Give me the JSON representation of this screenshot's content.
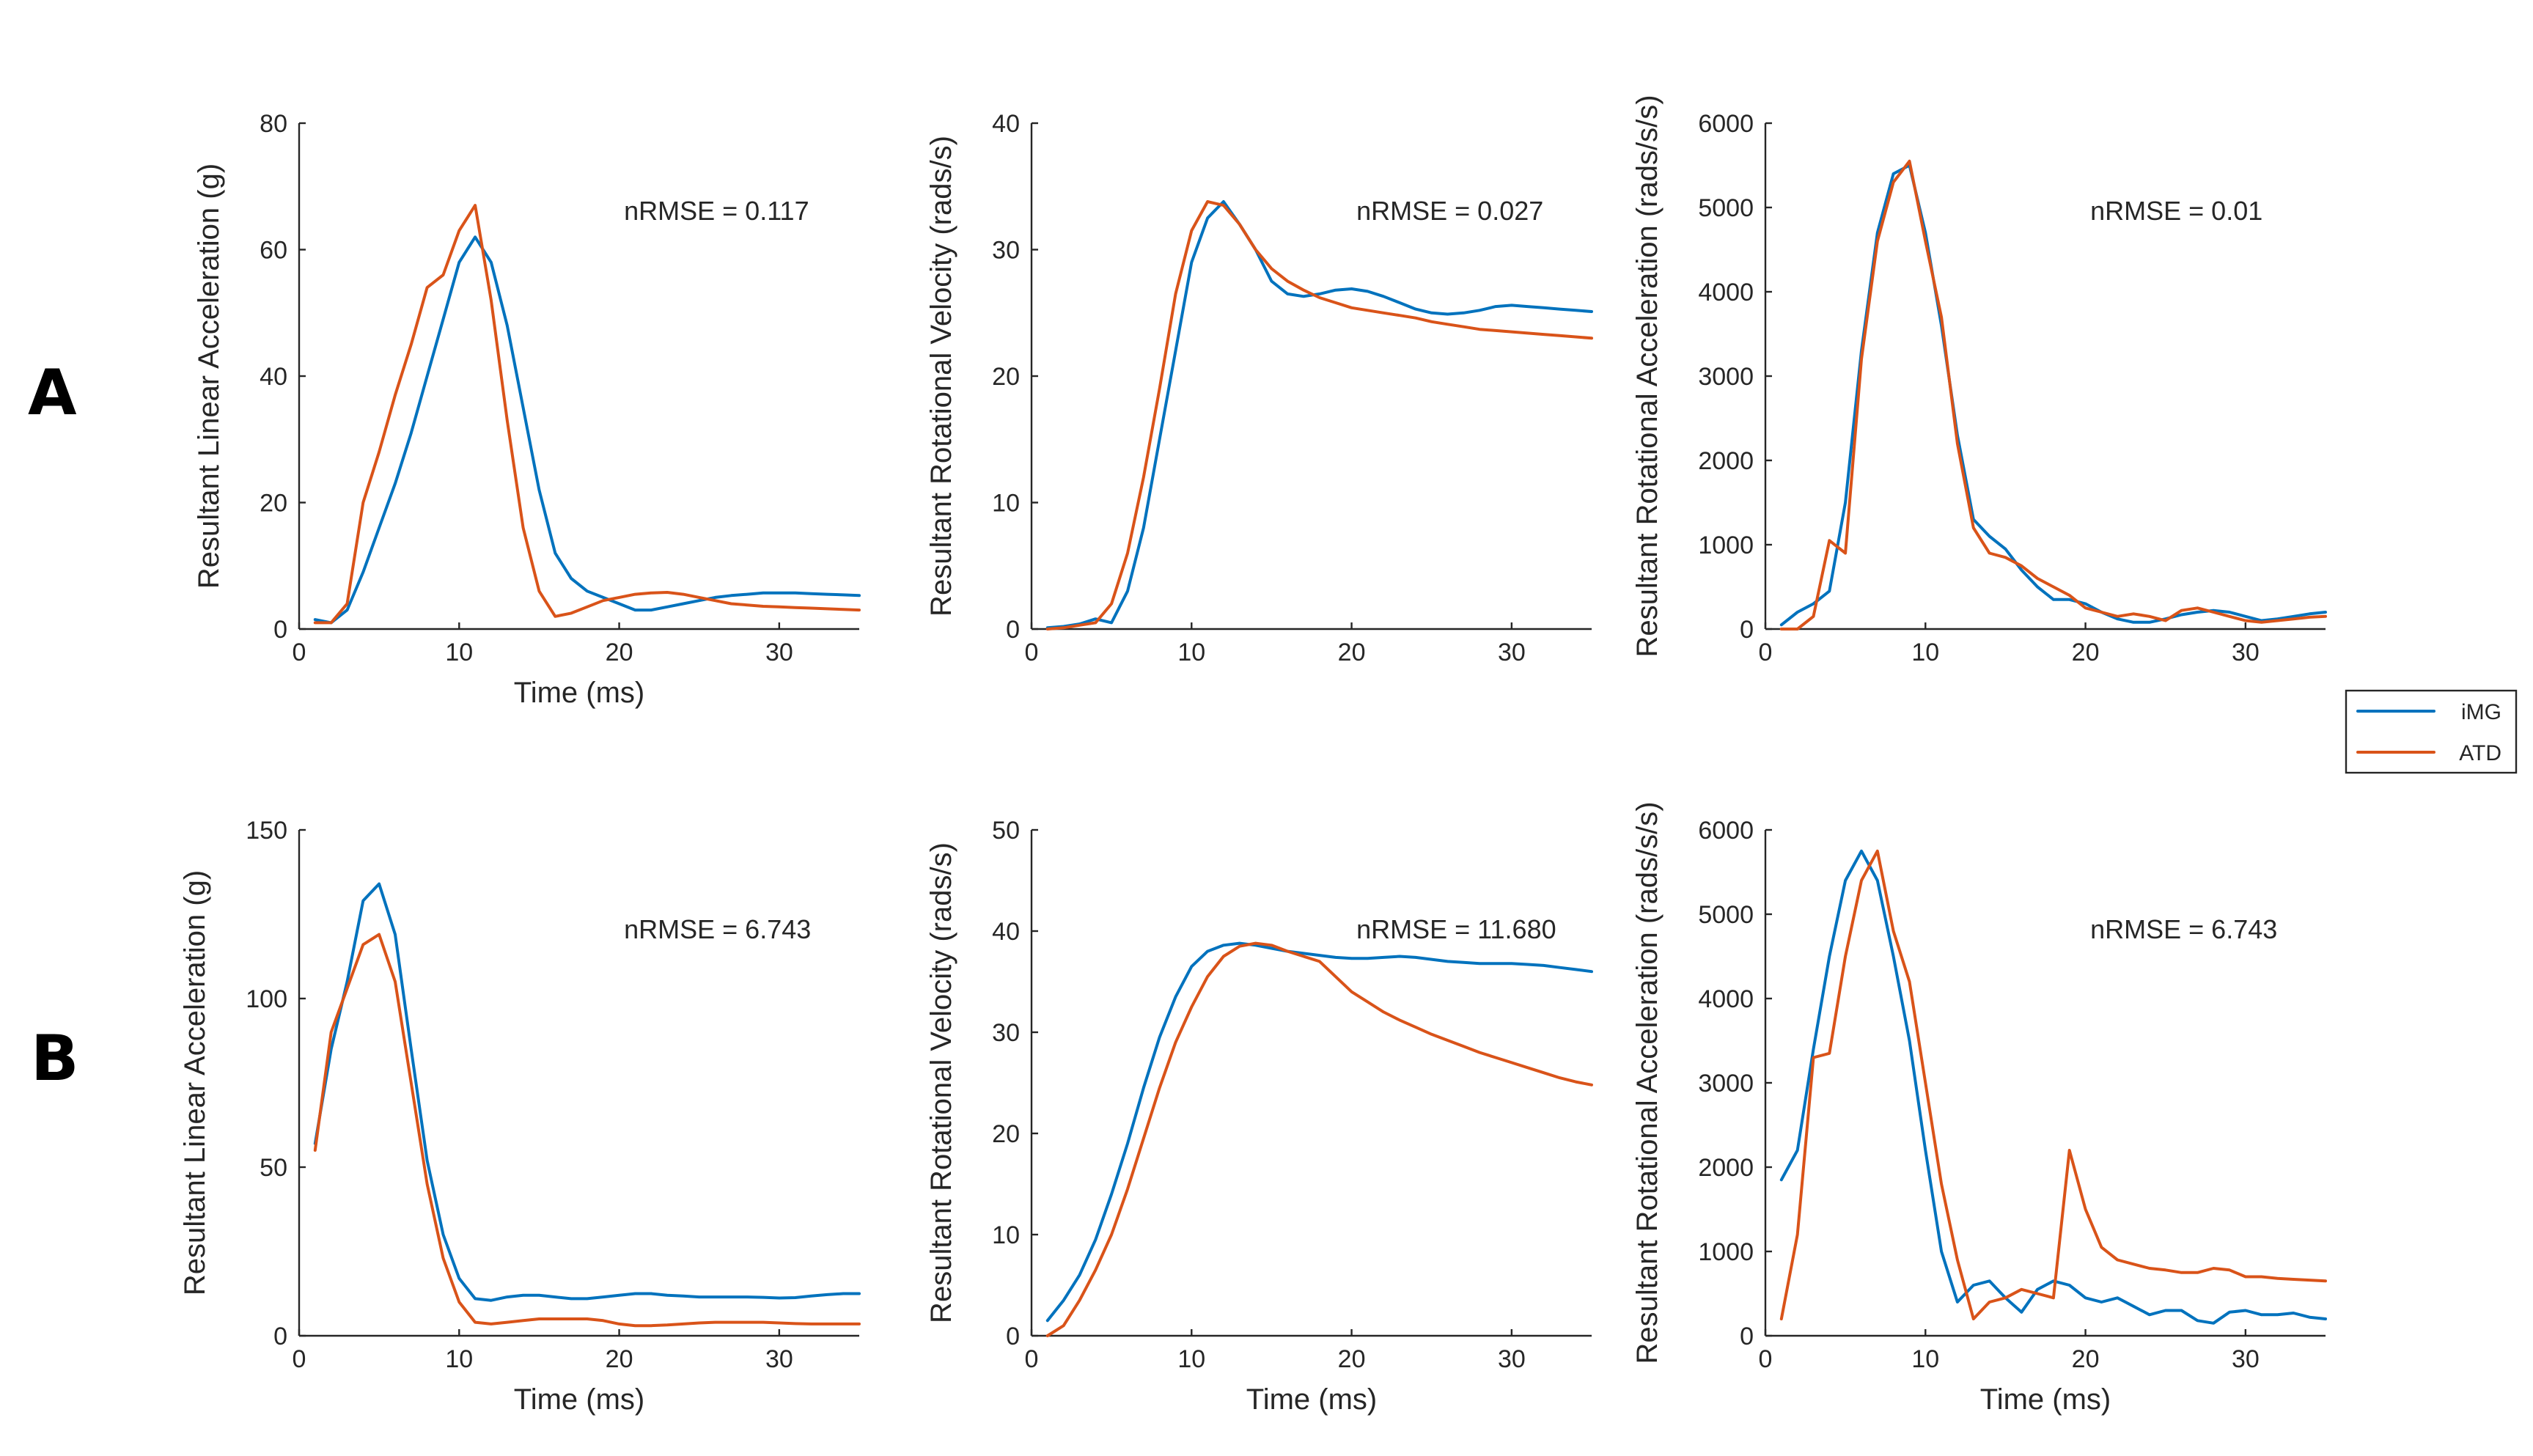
{
  "row_labels": [
    "A",
    "B"
  ],
  "legend": {
    "placement": "right-middle",
    "entries": [
      "iMG",
      "ATD"
    ]
  },
  "colors": {
    "iMG": "#0072BD",
    "ATD": "#D95319"
  },
  "chart_data": [
    {
      "type": "line",
      "row": "A",
      "col": 0,
      "xlabel": "Time (ms)",
      "ylabel": "Resultant Linear Acceleration (g)",
      "xlim": [
        0,
        35
      ],
      "ylim": [
        0,
        80
      ],
      "xticks": [
        0,
        10,
        20,
        30
      ],
      "yticks": [
        0,
        20,
        40,
        60,
        80
      ],
      "annotation": "nRMSE = 0.117",
      "series": [
        {
          "name": "iMG",
          "x": [
            1,
            2,
            3,
            4,
            5,
            6,
            7,
            8,
            9,
            10,
            11,
            12,
            13,
            14,
            15,
            16,
            17,
            18,
            19,
            20,
            21,
            22,
            23,
            24,
            25,
            26,
            27,
            28,
            29,
            30,
            31,
            32,
            33,
            34,
            35
          ],
          "y": [
            1.5,
            1,
            3,
            9,
            16,
            23,
            31,
            40,
            49,
            58,
            62,
            58,
            48,
            35,
            22,
            12,
            8,
            6,
            5,
            4,
            3,
            3,
            3.5,
            4,
            4.5,
            5,
            5.3,
            5.5,
            5.7,
            5.7,
            5.7,
            5.6,
            5.5,
            5.4,
            5.3
          ]
        },
        {
          "name": "ATD",
          "x": [
            1,
            2,
            3,
            4,
            5,
            6,
            7,
            8,
            9,
            10,
            11,
            12,
            13,
            14,
            15,
            16,
            17,
            18,
            19,
            20,
            21,
            22,
            23,
            24,
            25,
            26,
            27,
            28,
            29,
            30,
            31,
            32,
            33,
            34,
            35
          ],
          "y": [
            1,
            1,
            4,
            20,
            28,
            37,
            45,
            54,
            56,
            63,
            67,
            52,
            33,
            16,
            6,
            2,
            2.5,
            3.5,
            4.5,
            5,
            5.5,
            5.7,
            5.8,
            5.5,
            5,
            4.5,
            4,
            3.8,
            3.6,
            3.5,
            3.4,
            3.3,
            3.2,
            3.1,
            3
          ]
        }
      ]
    },
    {
      "type": "line",
      "row": "A",
      "col": 1,
      "xlabel": "",
      "ylabel": "Resultant Rotational Velocity (rads/s)",
      "xlim": [
        0,
        35
      ],
      "ylim": [
        0,
        40
      ],
      "xticks": [
        0,
        10,
        20,
        30
      ],
      "yticks": [
        0,
        10,
        20,
        30,
        40
      ],
      "annotation": "nRMSE = 0.027",
      "series": [
        {
          "name": "iMG",
          "x": [
            1,
            2,
            3,
            4,
            5,
            6,
            7,
            8,
            9,
            10,
            11,
            12,
            13,
            14,
            15,
            16,
            17,
            18,
            19,
            20,
            21,
            22,
            23,
            24,
            25,
            26,
            27,
            28,
            29,
            30,
            31,
            32,
            33,
            34,
            35
          ],
          "y": [
            0.1,
            0.2,
            0.4,
            0.8,
            0.5,
            3,
            8,
            15,
            22,
            29,
            32.5,
            33.8,
            32,
            30,
            27.5,
            26.5,
            26.3,
            26.5,
            26.8,
            26.9,
            26.7,
            26.3,
            25.8,
            25.3,
            25,
            24.9,
            25,
            25.2,
            25.5,
            25.6,
            25.5,
            25.4,
            25.3,
            25.2,
            25.1
          ]
        },
        {
          "name": "ATD",
          "x": [
            1,
            2,
            3,
            4,
            5,
            6,
            7,
            8,
            9,
            10,
            11,
            12,
            13,
            14,
            15,
            16,
            17,
            18,
            19,
            20,
            21,
            22,
            23,
            24,
            25,
            26,
            27,
            28,
            29,
            30,
            31,
            32,
            33,
            34,
            35
          ],
          "y": [
            0,
            0.1,
            0.3,
            0.5,
            2,
            6,
            12,
            19,
            26.5,
            31.5,
            33.8,
            33.5,
            32,
            30,
            28.5,
            27.5,
            26.8,
            26.2,
            25.8,
            25.4,
            25.2,
            25,
            24.8,
            24.6,
            24.3,
            24.1,
            23.9,
            23.7,
            23.6,
            23.5,
            23.4,
            23.3,
            23.2,
            23.1,
            23
          ]
        }
      ]
    },
    {
      "type": "line",
      "row": "A",
      "col": 2,
      "xlabel": "",
      "ylabel": "Resultant Rotational Acceleration (rads/s/s)",
      "xlim": [
        0,
        35
      ],
      "ylim": [
        0,
        6000
      ],
      "xticks": [
        0,
        10,
        20,
        30
      ],
      "yticks": [
        0,
        1000,
        2000,
        3000,
        4000,
        5000,
        6000
      ],
      "annotation": "nRMSE = 0.01",
      "series": [
        {
          "name": "iMG",
          "x": [
            1,
            2,
            3,
            4,
            5,
            6,
            7,
            8,
            9,
            10,
            11,
            12,
            13,
            14,
            15,
            16,
            17,
            18,
            19,
            20,
            21,
            22,
            23,
            24,
            25,
            26,
            27,
            28,
            29,
            30,
            31,
            32,
            33,
            34,
            35
          ],
          "y": [
            50,
            200,
            300,
            450,
            1500,
            3300,
            4700,
            5400,
            5500,
            4700,
            3600,
            2300,
            1300,
            1100,
            950,
            700,
            500,
            350,
            350,
            300,
            200,
            120,
            80,
            80,
            120,
            170,
            200,
            220,
            200,
            150,
            100,
            120,
            150,
            180,
            200
          ]
        },
        {
          "name": "ATD",
          "x": [
            1,
            2,
            3,
            4,
            5,
            6,
            7,
            8,
            9,
            10,
            11,
            12,
            13,
            14,
            15,
            16,
            17,
            18,
            19,
            20,
            21,
            22,
            23,
            24,
            25,
            26,
            27,
            28,
            29,
            30,
            31,
            32,
            33,
            34,
            35
          ],
          "y": [
            0,
            0,
            150,
            1050,
            900,
            3200,
            4600,
            5300,
            5550,
            4600,
            3700,
            2200,
            1200,
            900,
            850,
            750,
            600,
            500,
            400,
            250,
            200,
            150,
            180,
            150,
            100,
            220,
            250,
            200,
            150,
            100,
            80,
            100,
            120,
            140,
            150
          ]
        }
      ]
    },
    {
      "type": "line",
      "row": "B",
      "col": 0,
      "xlabel": "Time (ms)",
      "ylabel": "Resultant Linear Acceleration (g)",
      "xlim": [
        0,
        35
      ],
      "ylim": [
        0,
        150
      ],
      "xticks": [
        0,
        10,
        20,
        30
      ],
      "yticks": [
        0,
        50,
        100,
        150
      ],
      "annotation": "nRMSE = 6.743",
      "series": [
        {
          "name": "iMG",
          "x": [
            1,
            2,
            3,
            4,
            5,
            6,
            7,
            8,
            9,
            10,
            11,
            12,
            13,
            14,
            15,
            16,
            17,
            18,
            19,
            20,
            21,
            22,
            23,
            24,
            25,
            26,
            27,
            28,
            29,
            30,
            31,
            32,
            33,
            34,
            35
          ],
          "y": [
            57,
            85,
            105,
            129,
            134,
            119,
            85,
            52,
            30,
            17,
            11,
            10.5,
            11.5,
            12,
            12,
            11.5,
            11,
            11,
            11.5,
            12,
            12.5,
            12.5,
            12,
            11.8,
            11.5,
            11.5,
            11.5,
            11.5,
            11.4,
            11.2,
            11.3,
            11.8,
            12.2,
            12.5,
            12.5
          ]
        },
        {
          "name": "ATD",
          "x": [
            1,
            2,
            3,
            4,
            5,
            6,
            7,
            8,
            9,
            10,
            11,
            12,
            13,
            14,
            15,
            16,
            17,
            18,
            19,
            20,
            21,
            22,
            23,
            24,
            25,
            26,
            27,
            28,
            29,
            30,
            31,
            32,
            33,
            34,
            35
          ],
          "y": [
            55,
            90,
            103,
            116,
            119,
            105,
            75,
            45,
            23,
            10,
            4,
            3.5,
            4,
            4.5,
            5,
            5,
            5,
            5,
            4.5,
            3.5,
            3,
            3,
            3.2,
            3.5,
            3.8,
            4,
            4,
            4,
            4,
            3.8,
            3.6,
            3.5,
            3.5,
            3.5,
            3.5
          ]
        }
      ]
    },
    {
      "type": "line",
      "row": "B",
      "col": 1,
      "xlabel": "Time (ms)",
      "ylabel": "Resultant Rotational Velocity (rads/s)",
      "xlim": [
        0,
        35
      ],
      "ylim": [
        0,
        50
      ],
      "xticks": [
        0,
        10,
        20,
        30
      ],
      "yticks": [
        0,
        10,
        20,
        30,
        40,
        50
      ],
      "annotation": "nRMSE = 11.680",
      "series": [
        {
          "name": "iMG",
          "x": [
            1,
            2,
            3,
            4,
            5,
            6,
            7,
            8,
            9,
            10,
            11,
            12,
            13,
            14,
            15,
            16,
            17,
            18,
            19,
            20,
            21,
            22,
            23,
            24,
            25,
            26,
            27,
            28,
            29,
            30,
            31,
            32,
            33,
            34,
            35
          ],
          "y": [
            1.5,
            3.5,
            6,
            9.5,
            14,
            19,
            24.5,
            29.5,
            33.5,
            36.5,
            38,
            38.6,
            38.8,
            38.6,
            38.3,
            38,
            37.8,
            37.6,
            37.4,
            37.3,
            37.3,
            37.4,
            37.5,
            37.4,
            37.2,
            37,
            36.9,
            36.8,
            36.8,
            36.8,
            36.7,
            36.6,
            36.4,
            36.2,
            36
          ]
        },
        {
          "name": "ATD",
          "x": [
            1,
            2,
            3,
            4,
            5,
            6,
            7,
            8,
            9,
            10,
            11,
            12,
            13,
            14,
            15,
            16,
            17,
            18,
            19,
            20,
            21,
            22,
            23,
            24,
            25,
            26,
            27,
            28,
            29,
            30,
            31,
            32,
            33,
            34,
            35
          ],
          "y": [
            0,
            1,
            3.5,
            6.5,
            10,
            14.5,
            19.5,
            24.5,
            29,
            32.5,
            35.5,
            37.5,
            38.5,
            38.8,
            38.6,
            38,
            37.5,
            37,
            35.5,
            34,
            33,
            32,
            31.2,
            30.5,
            29.8,
            29.2,
            28.6,
            28,
            27.5,
            27,
            26.5,
            26,
            25.5,
            25.1,
            24.8
          ]
        }
      ]
    },
    {
      "type": "line",
      "row": "B",
      "col": 2,
      "xlabel": "Time (ms)",
      "ylabel": "Resultant Rotational Acceleration (rads/s/s)",
      "xlim": [
        0,
        35
      ],
      "ylim": [
        0,
        6000
      ],
      "xticks": [
        0,
        10,
        20,
        30
      ],
      "yticks": [
        0,
        1000,
        2000,
        3000,
        4000,
        5000,
        6000
      ],
      "annotation": "nRMSE = 6.743",
      "series": [
        {
          "name": "iMG",
          "x": [
            1,
            2,
            3,
            4,
            5,
            6,
            7,
            8,
            9,
            10,
            11,
            12,
            13,
            14,
            15,
            16,
            17,
            18,
            19,
            20,
            21,
            22,
            23,
            24,
            25,
            26,
            27,
            28,
            29,
            30,
            31,
            32,
            33,
            34,
            35
          ],
          "y": [
            1850,
            2200,
            3400,
            4500,
            5400,
            5750,
            5400,
            4500,
            3500,
            2200,
            1000,
            400,
            600,
            650,
            450,
            280,
            550,
            650,
            600,
            450,
            400,
            450,
            350,
            250,
            300,
            300,
            180,
            150,
            280,
            300,
            250,
            250,
            270,
            220,
            200
          ]
        },
        {
          "name": "ATD",
          "x": [
            1,
            2,
            3,
            4,
            5,
            6,
            7,
            8,
            9,
            10,
            11,
            12,
            13,
            14,
            15,
            16,
            17,
            18,
            19,
            20,
            21,
            22,
            23,
            24,
            25,
            26,
            27,
            28,
            29,
            30,
            31,
            32,
            33,
            34,
            35
          ],
          "y": [
            200,
            1200,
            3300,
            3350,
            4500,
            5400,
            5750,
            4800,
            4200,
            3000,
            1800,
            900,
            200,
            400,
            450,
            550,
            500,
            450,
            2200,
            1500,
            1050,
            900,
            850,
            800,
            780,
            750,
            750,
            800,
            780,
            700,
            700,
            680,
            670,
            660,
            650
          ]
        }
      ]
    }
  ]
}
